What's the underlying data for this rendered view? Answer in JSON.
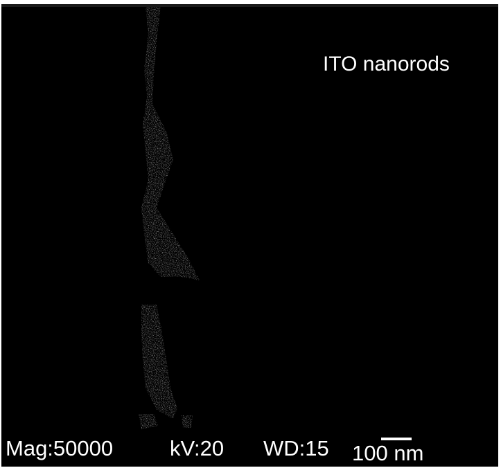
{
  "image": {
    "label": "ITO nanorods",
    "background_color": "#000000",
    "specimen_color": "#cfcfcf"
  },
  "info_bar": {
    "magnification": "Mag:50000",
    "voltage": "kV:20",
    "working_distance": "WD:15",
    "scale_bar_label": "100 nm"
  }
}
